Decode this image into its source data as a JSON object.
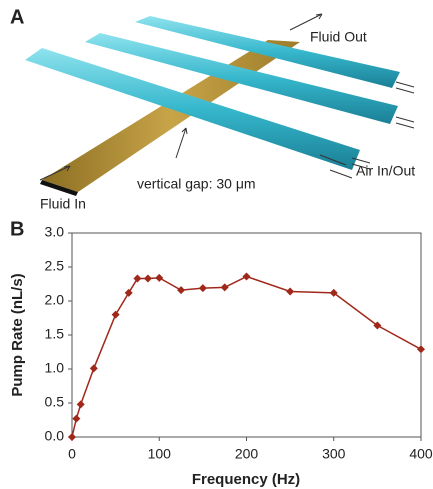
{
  "figure": {
    "panel_labels": [
      "A",
      "B"
    ],
    "annotations": {
      "fluid_out": "Fluid Out",
      "air": "Air In/Out",
      "gap": "vertical gap: 30 μm",
      "fluid_in": "Fluid In"
    }
  },
  "chart_data": {
    "type": "line",
    "x_label": "Frequency (Hz)",
    "y_label": "Pump Rate (nL/s)",
    "x": [
      0,
      5,
      10,
      25,
      50,
      65,
      75,
      87,
      100,
      125,
      150,
      175,
      200,
      250,
      300,
      350,
      400
    ],
    "series": [
      {
        "color": "#a0281a",
        "values": [
          0,
          0.27,
          0.48,
          1.01,
          1.8,
          2.12,
          2.33,
          2.33,
          2.34,
          2.16,
          2.19,
          2.2,
          2.36,
          2.14,
          2.12,
          1.64,
          1.29
        ]
      }
    ],
    "xlim": [
      0,
      400
    ],
    "xticks": [
      0,
      100,
      200,
      300,
      400
    ],
    "ylim": [
      0,
      3
    ],
    "yticks": [
      {
        "value": 0,
        "label": "0.0"
      },
      0.5,
      {
        "value": 1,
        "label": "1.0"
      },
      1.5,
      {
        "value": 2,
        "label": "2.0"
      },
      2.5,
      {
        "value": 3,
        "label": "3.0"
      }
    ]
  }
}
